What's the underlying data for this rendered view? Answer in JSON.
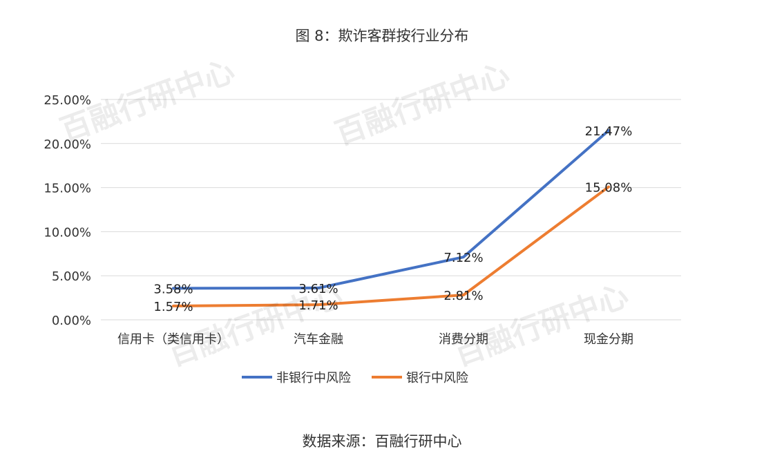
{
  "title": "图 8：欺诈客群按行业分布",
  "source": "数据来源：百融行研中心",
  "watermark": "百融行研中心",
  "chart_data": {
    "type": "line",
    "categories": [
      "信用卡（类信用卡）",
      "汽车金融",
      "消费分期",
      "现金分期"
    ],
    "series": [
      {
        "name": "非银行中风险",
        "color": "#4472c4",
        "values": [
          3.58,
          3.61,
          7.12,
          21.47
        ],
        "labels": [
          "3.58%",
          "3.61%",
          "7.12%",
          "21.47%"
        ]
      },
      {
        "name": "银行中风险",
        "color": "#ed7d31",
        "values": [
          1.57,
          1.71,
          2.81,
          15.08
        ],
        "labels": [
          "1.57%",
          "1.71%",
          "2.81%",
          "15.08%"
        ]
      }
    ],
    "ylim": [
      0,
      25
    ],
    "yticks": [
      0,
      5,
      10,
      15,
      20,
      25
    ],
    "ytick_labels": [
      "0.00%",
      "5.00%",
      "10.00%",
      "15.00%",
      "20.00%",
      "25.00%"
    ],
    "grid": true,
    "legend": "bottom"
  }
}
